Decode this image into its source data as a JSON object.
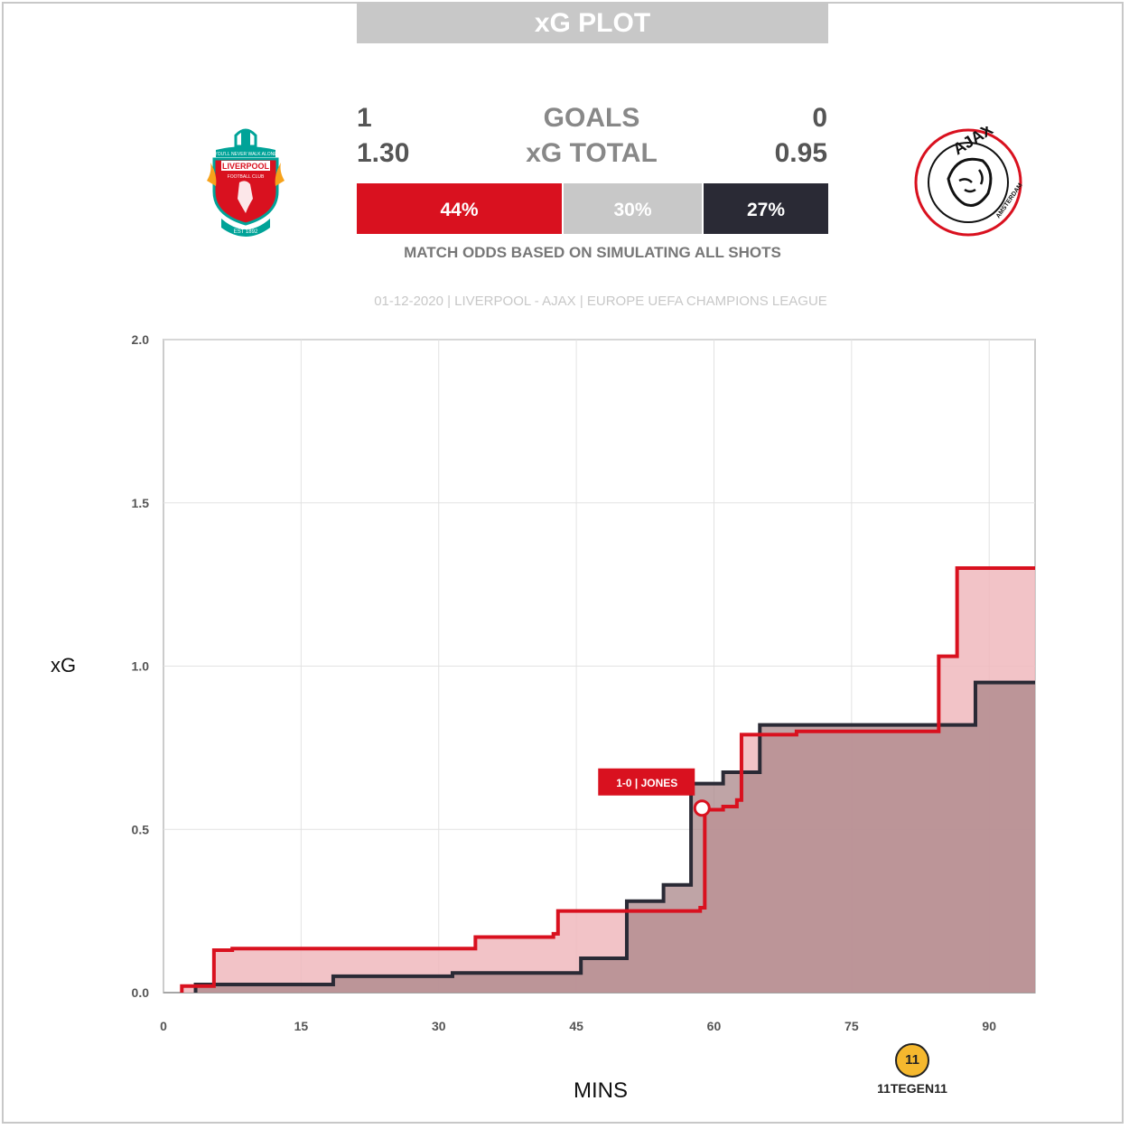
{
  "header": {
    "title": "xG PLOT"
  },
  "home": {
    "name": "Liverpool",
    "goals": "1",
    "xg": "1.30",
    "win_pct": "44%",
    "color": "#d9111f",
    "crest_text": {
      "top": "YOU'LL NEVER WALK ALONE",
      "name": "LIVERPOOL",
      "sub": "FOOTBALL CLUB",
      "est": "EST 1892"
    }
  },
  "away": {
    "name": "Ajax",
    "goals": "0",
    "xg": "0.95",
    "win_pct": "27%",
    "color": "#2a2a35",
    "crest_text": {
      "name": "AJAX",
      "city": "AMSTERDAM"
    }
  },
  "draw": {
    "pct": "30%",
    "color": "#c8c8c8"
  },
  "labels": {
    "goals": "GOALS",
    "xg_total": "xG TOTAL",
    "odds_note": "MATCH ODDS BASED ON SIMULATING ALL SHOTS"
  },
  "match_info": "01-12-2020 | LIVERPOOL - AJAX | EUROPE UEFA CHAMPIONS LEAGUE",
  "branding": {
    "text": "11TEGEN11"
  },
  "chart_data": {
    "type": "line",
    "step": true,
    "xlabel": "MINS",
    "ylabel": "xG",
    "xlim": [
      0,
      95
    ],
    "ylim": [
      0,
      2
    ],
    "x_ticks": [
      "0",
      "15",
      "30",
      "45",
      "60",
      "75",
      "90"
    ],
    "y_ticks": [
      "0.0",
      "0.5",
      "1.0",
      "1.5",
      "2.0"
    ],
    "grid": true,
    "series": [
      {
        "name": "Liverpool",
        "color": "#d9111f",
        "fill": "#f0b8bd",
        "x": [
          2,
          5.5,
          7.5,
          34,
          42.5,
          43,
          58.5,
          59,
          61,
          62.5,
          63,
          69,
          84.5,
          86.5,
          95
        ],
        "y": [
          0.02,
          0.13,
          0.135,
          0.17,
          0.18,
          0.25,
          0.26,
          0.56,
          0.57,
          0.59,
          0.79,
          0.8,
          1.03,
          1.3,
          1.3
        ]
      },
      {
        "name": "Ajax",
        "color": "#2a2a35",
        "fill": "#aa8588",
        "x": [
          3.5,
          18.5,
          31.5,
          45.5,
          50.5,
          54.5,
          57.5,
          61,
          65,
          88.5,
          95
        ],
        "y": [
          0.025,
          0.05,
          0.06,
          0.105,
          0.28,
          0.33,
          0.64,
          0.675,
          0.82,
          0.95,
          0.95
        ]
      }
    ],
    "annotations": [
      {
        "x": 58.7,
        "y": 0.565,
        "text": "1-0 | JONES"
      }
    ]
  }
}
